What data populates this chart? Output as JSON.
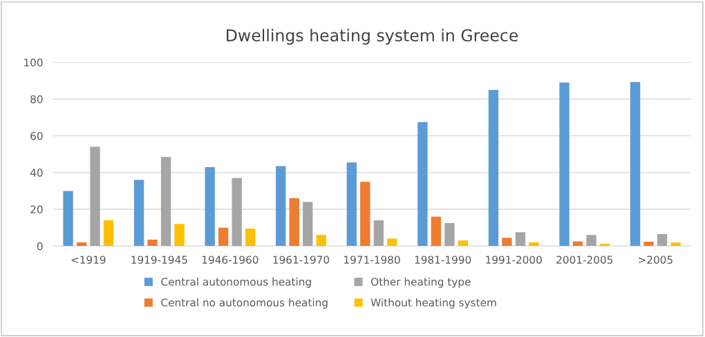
{
  "chart_data": {
    "type": "bar",
    "title": "Dwellings heating system in Greece",
    "categories": [
      "<1919",
      "1919-1945",
      "1946-1960",
      "1961-1970",
      "1971-1980",
      "1981-1990",
      "1991-2000",
      "2001-2005",
      ">2005"
    ],
    "series": [
      {
        "name": "Central autonomous heating",
        "color": "#5b9bd5",
        "values": [
          30,
          36,
          43,
          43.5,
          45.5,
          67.5,
          85,
          89,
          89.3
        ]
      },
      {
        "name": "Central no autonomous heating",
        "color": "#ed7d31",
        "values": [
          2,
          3.5,
          10,
          26,
          35,
          16,
          4.5,
          2.5,
          2.3
        ]
      },
      {
        "name": "Other heating type",
        "color": "#a5a5a5",
        "values": [
          54,
          48.5,
          37,
          24,
          14,
          12.5,
          7.5,
          6,
          6.5
        ]
      },
      {
        "name": "Without heating system",
        "color": "#ffc000",
        "values": [
          14,
          12,
          9.5,
          6,
          4,
          3,
          2,
          1.2,
          1.9
        ]
      }
    ],
    "ylim": [
      0,
      100
    ],
    "yticks": [
      0,
      20,
      40,
      60,
      80,
      100
    ],
    "grid": "y",
    "legend": "bottom"
  }
}
